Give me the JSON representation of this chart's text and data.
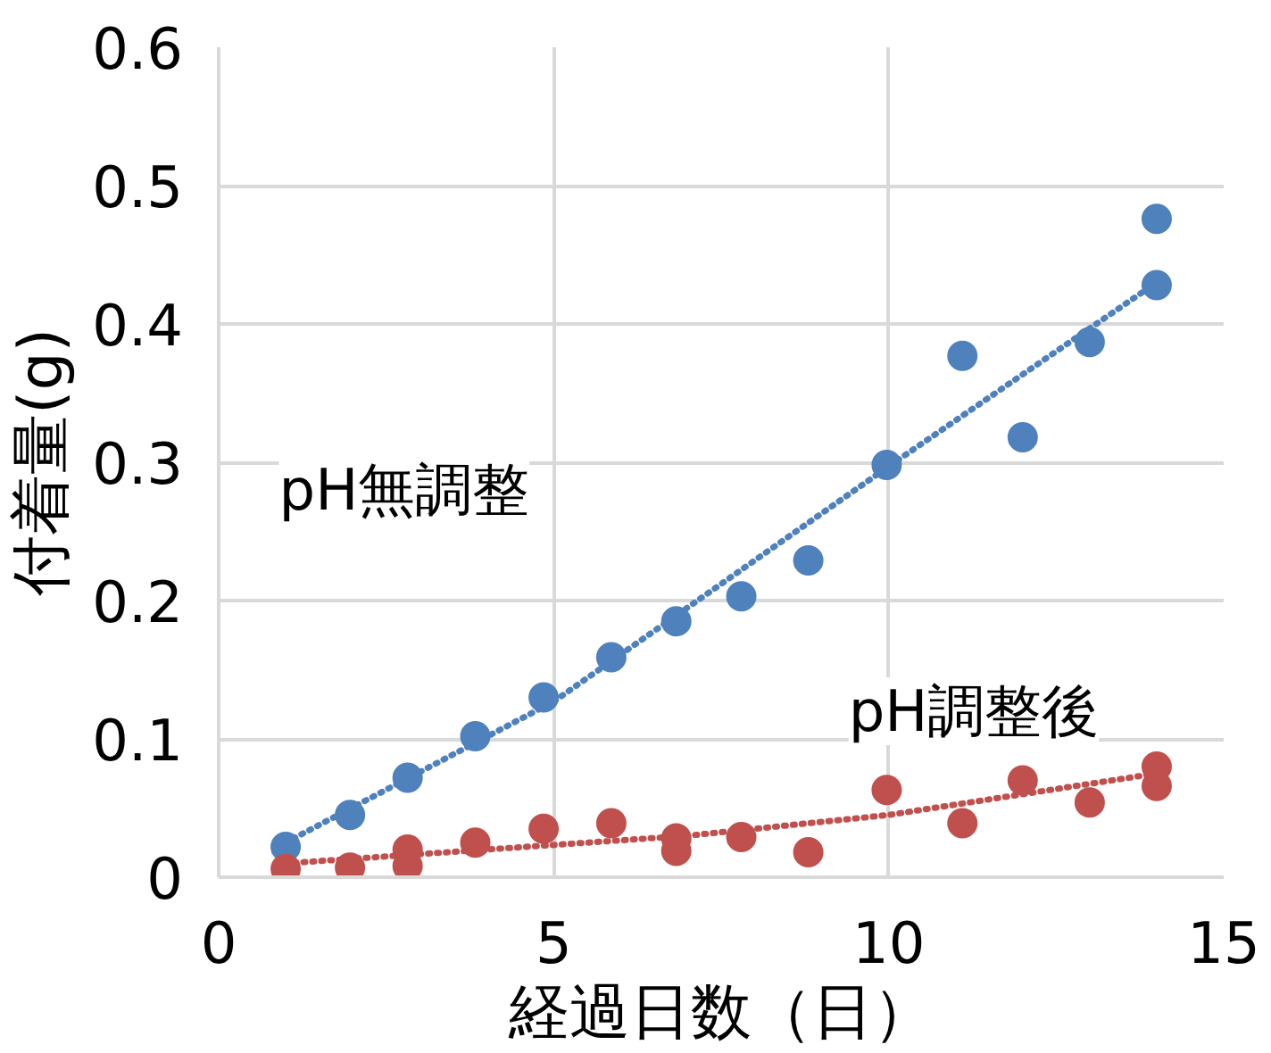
{
  "chart_data": {
    "type": "scatter",
    "xlabel": "経過日数（日）",
    "ylabel": "付着量(g)",
    "xlim": [
      0,
      15
    ],
    "xticks": [
      0,
      5,
      10,
      15
    ],
    "ylim": [
      0,
      0.6
    ],
    "yticks": [
      0,
      0.1,
      0.2,
      0.3,
      0.4,
      0.5,
      0.6
    ],
    "grid": true,
    "legend": false,
    "marker": "circle",
    "series": [
      {
        "name": "pH無調整",
        "color": "#4f81bd",
        "x": [
          1.0,
          1.96,
          2.82,
          3.83,
          4.85,
          5.86,
          6.83,
          7.8,
          8.8,
          9.97,
          11.1,
          12.0,
          13.0,
          14.0,
          14.0
        ],
        "values": [
          0.022,
          0.045,
          0.072,
          0.102,
          0.13,
          0.159,
          0.185,
          0.203,
          0.229,
          0.298,
          0.377,
          0.318,
          0.387,
          0.428,
          0.476
        ]
      },
      {
        "name": "pH調整後",
        "color": "#c0504d",
        "x": [
          1.0,
          1.96,
          2.82,
          2.82,
          3.83,
          4.85,
          5.86,
          6.83,
          6.83,
          7.8,
          8.8,
          9.97,
          11.1,
          12.0,
          13.0,
          14.0,
          14.0
        ],
        "values": [
          0.006,
          0.007,
          0.008,
          0.02,
          0.025,
          0.035,
          0.039,
          0.019,
          0.028,
          0.029,
          0.018,
          0.063,
          0.039,
          0.07,
          0.054,
          0.066,
          0.08
        ]
      },
      {
        "type": "line",
        "marker": "none",
        "line_style": "dotted",
        "color": "#4f81bd",
        "x": [
          1,
          5,
          10,
          14
        ],
        "values": [
          0.025,
          0.127,
          0.297,
          0.43
        ]
      },
      {
        "type": "line",
        "marker": "none",
        "line_style": "dotted",
        "color": "#c0504d",
        "x": [
          1,
          7,
          10,
          14
        ],
        "values": [
          0.01,
          0.03,
          0.045,
          0.075
        ]
      }
    ]
  }
}
